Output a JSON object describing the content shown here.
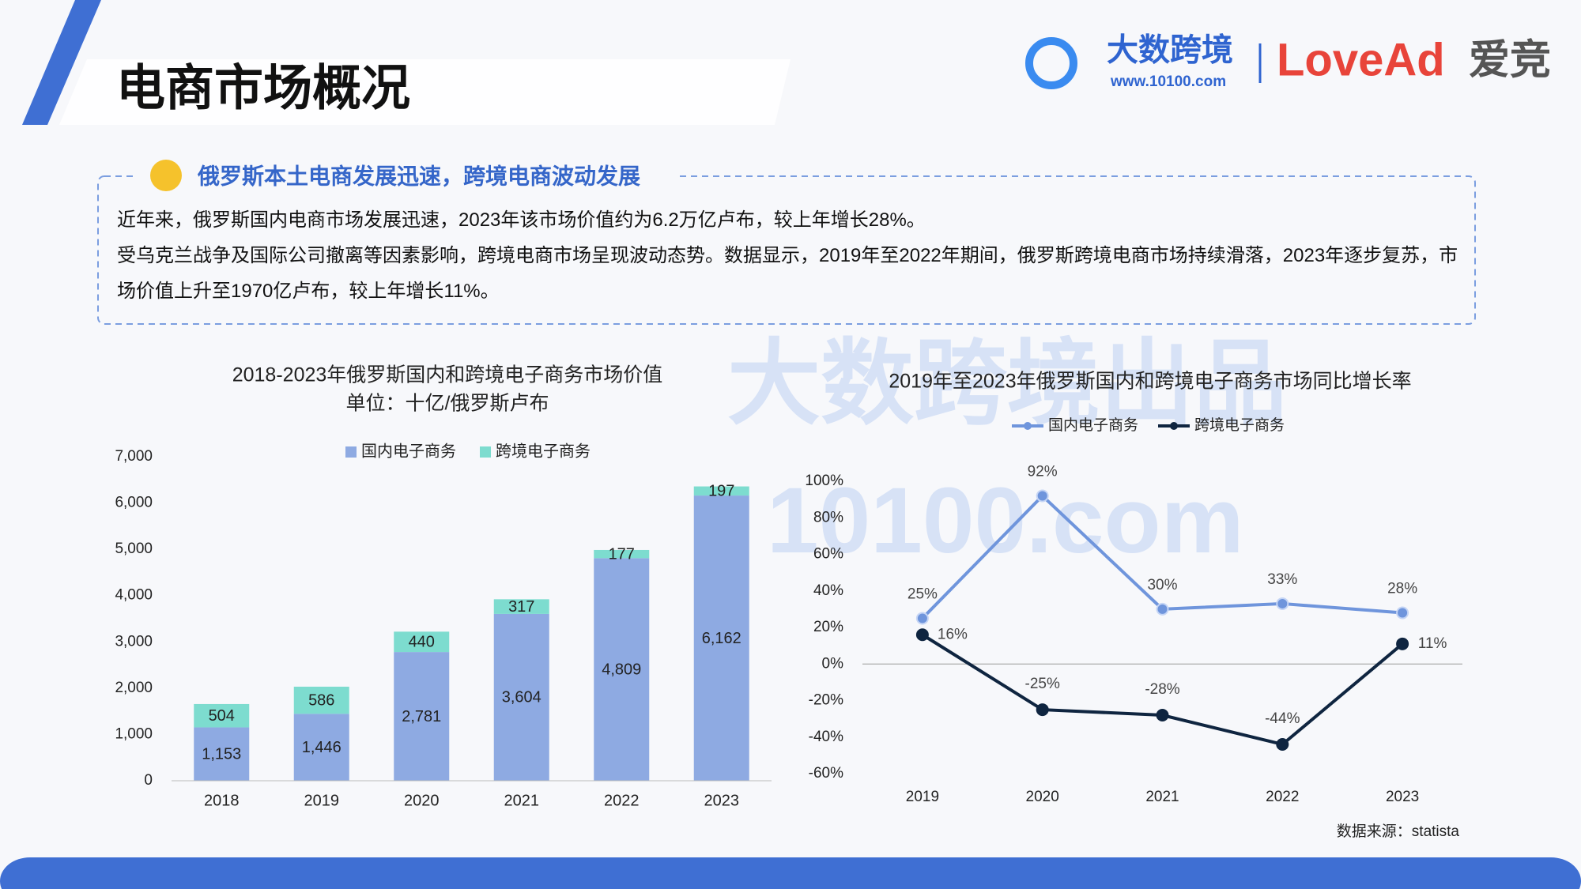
{
  "header": {
    "title": "电商市场概况",
    "logo_text": "大数跨境",
    "logo_url": "www.10100.com",
    "brand": "LoveAd",
    "brand_cn": "爱竞"
  },
  "summary": {
    "heading": "俄罗斯本土电商发展迅速，跨境电商波动发展",
    "paragraphs": [
      "近年来，俄罗斯国内电商市场发展迅速，2023年该市场价值约为6.2万亿卢布，较上年增长28%。",
      "受乌克兰战争及国际公司撤离等因素影响，跨境电商市场呈现波动态势。数据显示，2019年至2022年期间，俄罗斯跨境电商市场持续滑落，2023年逐步复苏，市场价值上升至1970亿卢布，较上年增长11%。"
    ]
  },
  "watermark": {
    "line1": "大数跨境出品",
    "line2": "10100.com"
  },
  "chart_data": [
    {
      "type": "stacked_bar",
      "title": "2018-2023年俄罗斯国内和跨境电子商务市场价值",
      "subtitle": "单位：十亿/俄罗斯卢布",
      "categories": [
        "2018",
        "2019",
        "2020",
        "2021",
        "2022",
        "2023"
      ],
      "series": [
        {
          "name": "国内电子商务",
          "color": "#8eaae2",
          "values": [
            1153,
            1446,
            2781,
            3604,
            4809,
            6162
          ],
          "value_labels": [
            "1,153",
            "1,446",
            "2,781",
            "3,604",
            "4,809",
            "6,162"
          ]
        },
        {
          "name": "跨境电子商务",
          "color": "#7ddccf",
          "values": [
            504,
            586,
            440,
            317,
            177,
            197
          ]
        }
      ],
      "ylim": [
        0,
        7000
      ],
      "yticks": [
        0,
        {
          "value": 1000,
          "label": "1,000"
        },
        {
          "value": 2000,
          "label": "2,000"
        },
        {
          "value": 3000,
          "label": "3,000"
        },
        {
          "value": 4000,
          "label": "4,000"
        },
        {
          "value": 5000,
          "label": "5,000"
        },
        {
          "value": 6000,
          "label": "6,000"
        },
        {
          "value": 7000,
          "label": "7,000"
        }
      ],
      "grid": false
    },
    {
      "type": "line",
      "title": "2019年至2023年俄罗斯国内和跨境电子商务市场同比增长率",
      "categories": [
        "2019",
        "2020",
        "2021",
        "2022",
        "2023"
      ],
      "series": [
        {
          "name": "国内电子商务",
          "color": "#6f95dc",
          "values": [
            25,
            92,
            30,
            33,
            28
          ],
          "value_labels": [
            "25%",
            "92%",
            "30%",
            "33%",
            "28%"
          ]
        },
        {
          "name": "跨境电子商务",
          "color": "#0f2540",
          "values": [
            16,
            -25,
            -28,
            -44,
            11
          ],
          "value_labels": [
            "16%",
            "-25%",
            "-28%",
            "-44%",
            "11%"
          ]
        }
      ],
      "ylim": [
        -60,
        100
      ],
      "yticks": [
        {
          "value": -60,
          "label": "-60%"
        },
        {
          "value": -40,
          "label": "-40%"
        },
        {
          "value": -20,
          "label": "-20%"
        },
        {
          "value": 0,
          "label": "0%"
        },
        {
          "value": 20,
          "label": "20%"
        },
        {
          "value": 40,
          "label": "40%"
        },
        {
          "value": 60,
          "label": "60%"
        },
        {
          "value": 80,
          "label": "80%"
        },
        {
          "value": 100,
          "label": "100%"
        }
      ],
      "grid": false
    }
  ],
  "source": "数据来源：statista"
}
